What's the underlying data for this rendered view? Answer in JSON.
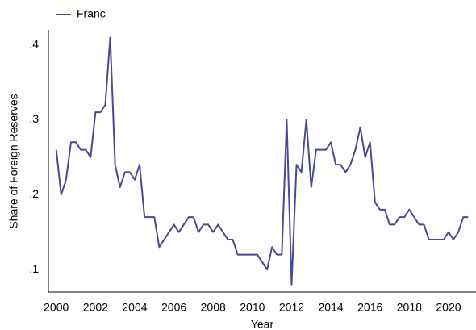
{
  "chart_data": {
    "type": "line",
    "xlabel": "Year",
    "ylabel": "Share of Foreign Reserves",
    "x": [
      2000,
      2000.25,
      2000.5,
      2000.75,
      2001,
      2001.25,
      2001.5,
      2001.75,
      2002,
      2002.25,
      2002.5,
      2002.75,
      2003,
      2003.25,
      2003.5,
      2003.75,
      2004,
      2004.25,
      2004.5,
      2004.75,
      2005,
      2005.25,
      2005.5,
      2005.75,
      2006,
      2006.25,
      2006.5,
      2006.75,
      2007,
      2007.25,
      2007.5,
      2007.75,
      2008,
      2008.25,
      2008.5,
      2008.75,
      2009,
      2009.25,
      2009.5,
      2009.75,
      2010,
      2010.25,
      2010.5,
      2010.75,
      2011,
      2011.25,
      2011.5,
      2011.75,
      2012,
      2012.25,
      2012.5,
      2012.75,
      2013,
      2013.25,
      2013.5,
      2013.75,
      2014,
      2014.25,
      2014.5,
      2014.75,
      2015,
      2015.25,
      2015.5,
      2015.75,
      2016,
      2016.25,
      2016.5,
      2016.75,
      2017,
      2017.25,
      2017.5,
      2017.75,
      2018,
      2018.25,
      2018.5,
      2018.75,
      2019,
      2019.25,
      2019.5,
      2019.75,
      2020,
      2020.25,
      2020.5,
      2020.75,
      2021
    ],
    "series": [
      {
        "name": "Franc",
        "color": "#4a4a90",
        "values": [
          0.26,
          0.2,
          0.22,
          0.27,
          0.27,
          0.26,
          0.26,
          0.25,
          0.31,
          0.31,
          0.32,
          0.41,
          0.24,
          0.21,
          0.23,
          0.23,
          0.22,
          0.24,
          0.17,
          0.17,
          0.17,
          0.13,
          0.14,
          0.15,
          0.16,
          0.15,
          0.16,
          0.17,
          0.17,
          0.15,
          0.16,
          0.16,
          0.15,
          0.16,
          0.15,
          0.14,
          0.14,
          0.12,
          0.12,
          0.12,
          0.12,
          0.12,
          0.11,
          0.1,
          0.13,
          0.12,
          0.12,
          0.3,
          0.08,
          0.24,
          0.23,
          0.3,
          0.21,
          0.26,
          0.26,
          0.26,
          0.27,
          0.24,
          0.24,
          0.23,
          0.24,
          0.26,
          0.29,
          0.25,
          0.27,
          0.19,
          0.18,
          0.18,
          0.16,
          0.16,
          0.17,
          0.17,
          0.18,
          0.17,
          0.16,
          0.16,
          0.14,
          0.14,
          0.14,
          0.14,
          0.15,
          0.14,
          0.15,
          0.17,
          0.17
        ]
      }
    ],
    "xlim": [
      1999.6,
      2021.4
    ],
    "ylim": [
      0.07,
      0.42
    ],
    "xticks": [
      2000,
      2002,
      2004,
      2006,
      2008,
      2010,
      2012,
      2014,
      2016,
      2018,
      2020
    ],
    "yticks": [
      {
        "value": 0.1,
        "label": ".1"
      },
      {
        "value": 0.2,
        "label": ".2"
      },
      {
        "value": 0.3,
        "label": ".3"
      },
      {
        "value": 0.4,
        "label": ".4"
      }
    ],
    "legend": "top-left"
  }
}
